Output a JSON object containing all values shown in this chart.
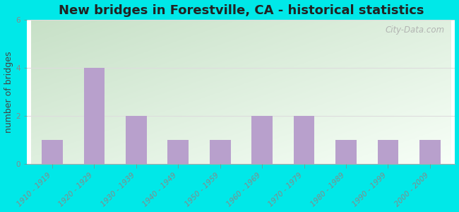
{
  "title": "New bridges in Forestville, CA - historical statistics",
  "categories": [
    "1910 - 1919",
    "1920 - 1929",
    "1930 - 1939",
    "1940 - 1949",
    "1950 - 1959",
    "1960 - 1969",
    "1970 - 1979",
    "1980 - 1989",
    "1990 - 1999",
    "2000 - 2009"
  ],
  "values": [
    1,
    4,
    2,
    1,
    1,
    2,
    2,
    1,
    1,
    1
  ],
  "bar_color": "#b8a0cc",
  "ylabel": "number of bridges",
  "ylim": [
    0,
    6
  ],
  "yticks": [
    0,
    2,
    4,
    6
  ],
  "background_outer": "#00e8e8",
  "background_inner_topleft": "#c8dfc8",
  "background_inner_bottomright": "#f8fff8",
  "title_fontsize": 13,
  "axis_label_fontsize": 9,
  "tick_fontsize": 7.5,
  "watermark_text": "City-Data.com",
  "grid_color": "#dddddd",
  "spine_color": "#aaaaaa"
}
